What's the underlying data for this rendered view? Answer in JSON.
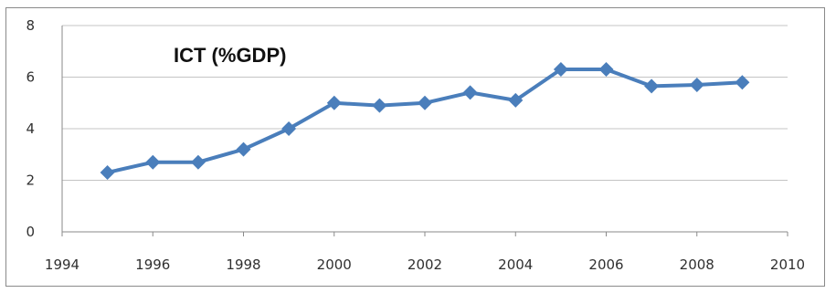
{
  "chart_data": {
    "type": "line",
    "title": "ICT (%GDP)",
    "xlabel": "",
    "ylabel": "",
    "xlim": [
      1994,
      2010
    ],
    "ylim": [
      0,
      8
    ],
    "x_ticks": [
      "1994",
      "1996",
      "1998",
      "2000",
      "2002",
      "2004",
      "2006",
      "2008",
      "2010"
    ],
    "y_ticks": [
      "0",
      "2",
      "4",
      "6",
      "8"
    ],
    "grid": true,
    "legend": "none",
    "marker": "diamond",
    "series_color": "#4a7ebb",
    "series": [
      {
        "x": [
          1995,
          1996,
          1997,
          1998,
          1999,
          2000,
          2001,
          2002,
          2003,
          2004,
          2005,
          2006,
          2007,
          2008,
          2009
        ],
        "values": [
          2.3,
          2.7,
          2.7,
          3.2,
          4.0,
          5.0,
          4.9,
          5.0,
          5.4,
          5.1,
          6.3,
          6.3,
          5.65,
          5.7,
          5.8
        ]
      }
    ]
  }
}
